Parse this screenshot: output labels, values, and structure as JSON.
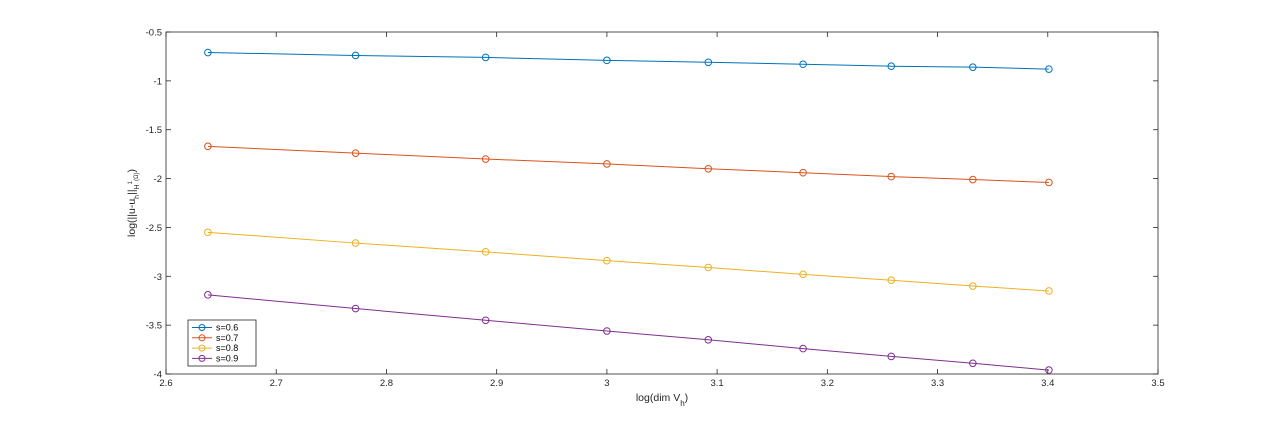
{
  "chart_data": {
    "type": "line",
    "title": "",
    "xlabel": {
      "main": "log(dim V",
      "sub": "h",
      "tail": ")"
    },
    "ylabel": {
      "pre": "log(||u-u",
      "sub": "h",
      "mid": "||",
      "sub2": "H",
      "sup": "1",
      "paren": "(Ω)",
      "tail": ")"
    },
    "xlim": [
      2.6,
      3.5
    ],
    "ylim": [
      -4,
      -0.5
    ],
    "xticks": [
      2.6,
      2.7,
      2.8,
      2.9,
      3,
      3.1,
      3.2,
      3.3,
      3.4,
      3.5
    ],
    "yticks": [
      -4,
      -3.5,
      -3,
      -2.5,
      -2,
      -1.5,
      -1,
      -0.5
    ],
    "xtick_labels": [
      "2.6",
      "2.7",
      "2.8",
      "2.9",
      "3",
      "3.1",
      "3.2",
      "3.3",
      "3.4",
      "3.5"
    ],
    "ytick_labels": [
      "-4",
      "-3.5",
      "-3",
      "-2.5",
      "-2",
      "-1.5",
      "-1",
      "-0.5"
    ],
    "grid": false,
    "legend_position": "bottom-left",
    "x": [
      2.638,
      2.772,
      2.89,
      3.0,
      3.092,
      3.178,
      3.258,
      3.332,
      3.401
    ],
    "series": [
      {
        "name": "s=0.6",
        "color": "#0072BD",
        "values": [
          -0.71,
          -0.74,
          -0.76,
          -0.79,
          -0.81,
          -0.83,
          -0.85,
          -0.86,
          -0.88
        ]
      },
      {
        "name": "s=0.7",
        "color": "#D95319",
        "values": [
          -1.67,
          -1.74,
          -1.8,
          -1.85,
          -1.9,
          -1.94,
          -1.98,
          -2.01,
          -2.04
        ]
      },
      {
        "name": "s=0.8",
        "color": "#EDB120",
        "values": [
          -2.55,
          -2.66,
          -2.75,
          -2.84,
          -2.91,
          -2.98,
          -3.04,
          -3.1,
          -3.15
        ]
      },
      {
        "name": "s=0.9",
        "color": "#7E2F8E",
        "values": [
          -3.19,
          -3.33,
          -3.45,
          -3.56,
          -3.65,
          -3.74,
          -3.82,
          -3.89,
          -3.96
        ]
      }
    ]
  }
}
